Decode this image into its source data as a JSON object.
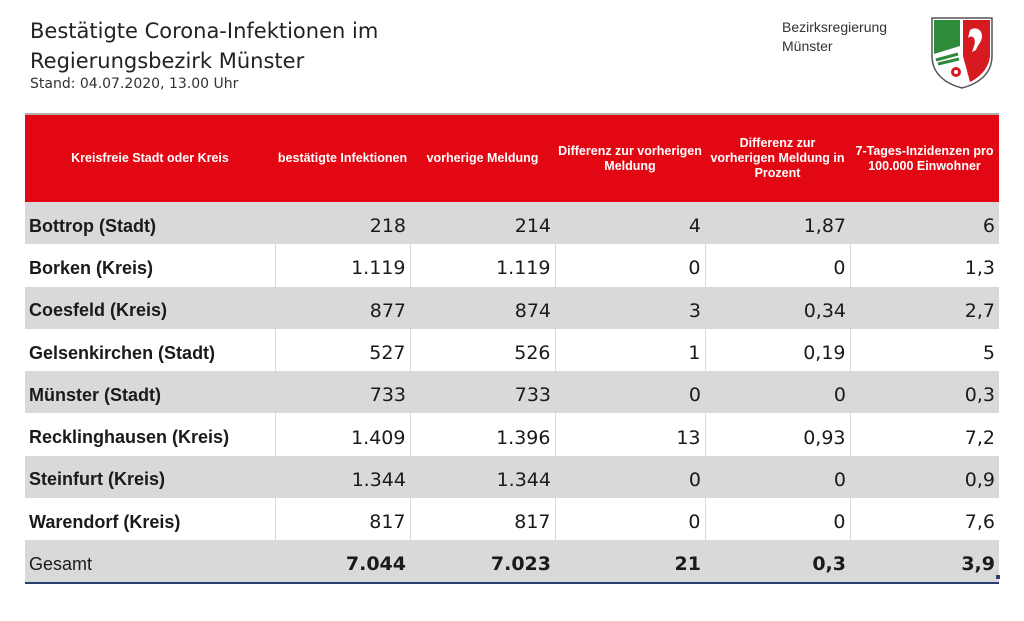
{
  "header": {
    "title": "Bestätigte Corona-Infektionen im Regierungsbezirk  Münster",
    "stand": "Stand: 04.07.2020, 13.00 Uhr",
    "brand_line1": "Bezirksregierung",
    "brand_line2": "Münster"
  },
  "colors": {
    "header_red": "#e30613",
    "row_gray": "#d9d9d9",
    "crest_green": "#2e8b3a"
  },
  "table": {
    "columns": [
      "Kreisfreie Stadt oder Kreis",
      "bestätigte Infektionen",
      "vorherige Meldung",
      "Differenz zur vorherigen Meldung",
      "Differenz zur vorherigen Meldung in Prozent",
      "7-Tages-Inzidenzen pro 100.000 Einwohner"
    ],
    "rows": [
      [
        "Bottrop (Stadt)",
        "218",
        "214",
        "4",
        "1,87",
        "6"
      ],
      [
        "Borken (Kreis)",
        "1.119",
        "1.119",
        "0",
        "0",
        "1,3"
      ],
      [
        "Coesfeld (Kreis)",
        "877",
        "874",
        "3",
        "0,34",
        "2,7"
      ],
      [
        "Gelsenkirchen (Stadt)",
        "527",
        "526",
        "1",
        "0,19",
        "5"
      ],
      [
        "Münster (Stadt)",
        "733",
        "733",
        "0",
        "0",
        "0,3"
      ],
      [
        "Recklinghausen (Kreis)",
        "1.409",
        "1.396",
        "13",
        "0,93",
        "7,2"
      ],
      [
        "Steinfurt (Kreis)",
        "1.344",
        "1.344",
        "0",
        "0",
        "0,9"
      ],
      [
        "Warendorf (Kreis)",
        "817",
        "817",
        "0",
        "0",
        "7,6"
      ]
    ],
    "total": [
      "Gesamt",
      "7.044",
      "7.023",
      "21",
      "0,3",
      "3,9"
    ]
  }
}
